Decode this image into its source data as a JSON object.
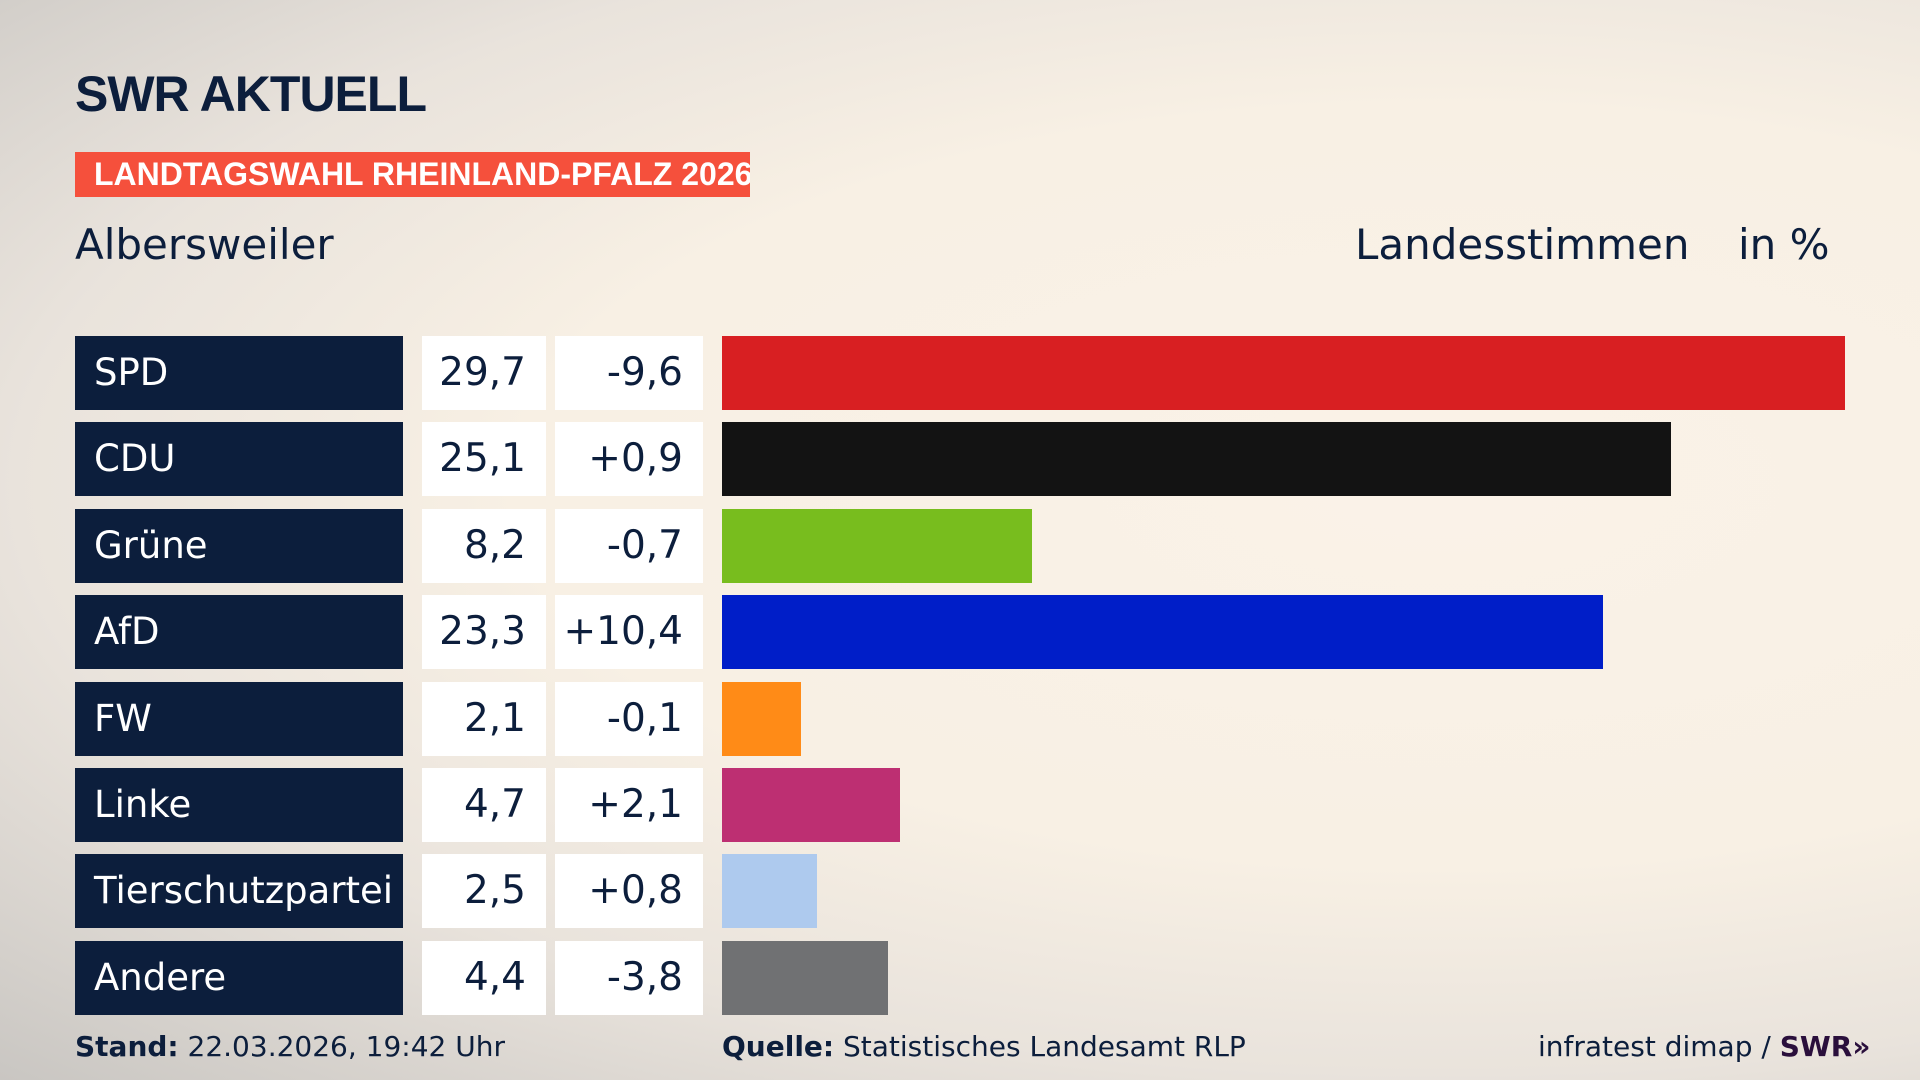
{
  "header": {
    "logo": "SWR AKTUELL",
    "logo_chevrons": "»",
    "banner": "LANDTAGSWAHL RHEINLAND-PFALZ 2026",
    "place": "Albersweiler",
    "measure": "Landesstimmen",
    "unit": "in %"
  },
  "colors": {
    "navy": "#0c1e3c",
    "banner": "#f5503c"
  },
  "chart_data": {
    "type": "bar",
    "orientation": "horizontal",
    "xlim": [
      0,
      29.7
    ],
    "categories": [
      "SPD",
      "CDU",
      "Grüne",
      "AfD",
      "FW",
      "Linke",
      "Tierschutzpartei",
      "Andere"
    ],
    "values": [
      29.7,
      25.1,
      8.2,
      23.3,
      2.1,
      4.7,
      2.5,
      4.4
    ],
    "value_labels": [
      "29,7",
      "25,1",
      "8,2",
      "23,3",
      "2,1",
      "4,7",
      "2,5",
      "4,4"
    ],
    "diff_labels": [
      "-9,6",
      "+0,9",
      "-0,7",
      "+10,4",
      "-0,1",
      "+2,1",
      "+0,8",
      "-3,8"
    ],
    "colors": [
      "#d81f22",
      "#131313",
      "#78bd1e",
      "#001ec8",
      "#ff8b17",
      "#bd2f72",
      "#aecaee",
      "#707173"
    ]
  },
  "footer": {
    "stand_label": "Stand:",
    "stand_value": "22.03.2026, 19:42 Uhr",
    "source_label": "Quelle:",
    "source_value": "Statistisches Landesamt RLP",
    "credit": "infratest dimap /",
    "credit_logo": "SWR»"
  }
}
